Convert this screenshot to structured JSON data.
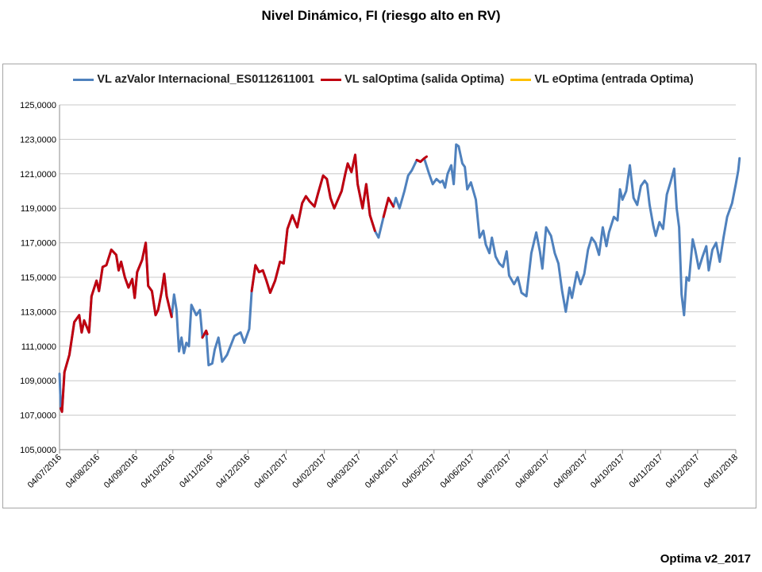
{
  "title": "Nivel Dinámico, FI (riesgo alto en RV)",
  "footer": "Optima v2_2017",
  "colors": {
    "series_blue": "#4f81bd",
    "series_red": "#c0000f",
    "series_yellow": "#ffc000",
    "grid": "#c8c8c8"
  },
  "chart_data": {
    "type": "line",
    "title": "Nivel Dinámico, FI (riesgo alto en RV)",
    "xlabel": "",
    "ylabel": "",
    "ylim": [
      105,
      125
    ],
    "y_ticks": [
      "105,0000",
      "107,0000",
      "109,0000",
      "111,0000",
      "113,0000",
      "115,0000",
      "117,0000",
      "119,0000",
      "121,0000",
      "123,0000",
      "125,0000"
    ],
    "x_ticks": [
      "04/07/2016",
      "04/08/2016",
      "04/09/2016",
      "04/10/2016",
      "04/11/2016",
      "04/12/2016",
      "04/01/2017",
      "04/02/2017",
      "04/03/2017",
      "04/04/2017",
      "04/05/2017",
      "04/06/2017",
      "04/07/2017",
      "04/08/2017",
      "04/09/2017",
      "04/10/2017",
      "04/11/2017",
      "04/12/2017",
      "04/01/2018"
    ],
    "grid": true,
    "legend_position": "top",
    "series": [
      {
        "name": "VL azValor Internacional_ES0112611001",
        "color": "#4f81bd",
        "points": [
          [
            "2016-07-04",
            109.4
          ],
          [
            "2016-07-05",
            107.4
          ],
          [
            "2016-07-06",
            107.2
          ],
          [
            "2016-07-08",
            109.5
          ],
          [
            "2016-07-12",
            110.5
          ],
          [
            "2016-07-16",
            112.4
          ],
          [
            "2016-07-20",
            112.8
          ],
          [
            "2016-07-22",
            111.8
          ],
          [
            "2016-07-24",
            112.5
          ],
          [
            "2016-07-28",
            111.8
          ],
          [
            "2016-07-30",
            113.9
          ],
          [
            "2016-08-03",
            114.8
          ],
          [
            "2016-08-05",
            114.2
          ],
          [
            "2016-08-08",
            115.6
          ],
          [
            "2016-08-11",
            115.7
          ],
          [
            "2016-08-15",
            116.6
          ],
          [
            "2016-08-19",
            116.3
          ],
          [
            "2016-08-21",
            115.4
          ],
          [
            "2016-08-23",
            115.9
          ],
          [
            "2016-08-26",
            115.0
          ],
          [
            "2016-08-29",
            114.4
          ],
          [
            "2016-09-01",
            114.9
          ],
          [
            "2016-09-03",
            113.8
          ],
          [
            "2016-09-05",
            115.3
          ],
          [
            "2016-09-09",
            116.0
          ],
          [
            "2016-09-12",
            117.0
          ],
          [
            "2016-09-14",
            114.5
          ],
          [
            "2016-09-17",
            114.2
          ],
          [
            "2016-09-20",
            112.8
          ],
          [
            "2016-09-22",
            113.1
          ],
          [
            "2016-09-25",
            114.2
          ],
          [
            "2016-09-27",
            115.2
          ],
          [
            "2016-09-29",
            113.9
          ],
          [
            "2016-10-03",
            112.7
          ],
          [
            "2016-10-05",
            114.0
          ],
          [
            "2016-10-07",
            113.1
          ],
          [
            "2016-10-09",
            110.7
          ],
          [
            "2016-10-11",
            111.5
          ],
          [
            "2016-10-13",
            110.6
          ],
          [
            "2016-10-15",
            111.2
          ],
          [
            "2016-10-17",
            111.0
          ],
          [
            "2016-10-19",
            113.4
          ],
          [
            "2016-10-23",
            112.8
          ],
          [
            "2016-10-26",
            113.1
          ],
          [
            "2016-10-28",
            111.5
          ],
          [
            "2016-10-31",
            111.9
          ],
          [
            "2016-11-02",
            109.9
          ],
          [
            "2016-11-05",
            110.0
          ],
          [
            "2016-11-07",
            110.8
          ],
          [
            "2016-11-10",
            111.5
          ],
          [
            "2016-11-13",
            110.1
          ],
          [
            "2016-11-17",
            110.5
          ],
          [
            "2016-11-23",
            111.6
          ],
          [
            "2016-11-28",
            111.8
          ],
          [
            "2016-12-01",
            111.2
          ],
          [
            "2016-12-05",
            112.0
          ],
          [
            "2016-12-07",
            114.2
          ],
          [
            "2016-12-10",
            115.7
          ],
          [
            "2016-12-13",
            115.3
          ],
          [
            "2016-12-16",
            115.4
          ],
          [
            "2016-12-19",
            114.8
          ],
          [
            "2016-12-22",
            114.1
          ],
          [
            "2016-12-26",
            114.8
          ],
          [
            "2016-12-30",
            115.9
          ],
          [
            "2017-01-02",
            115.8
          ],
          [
            "2017-01-05",
            117.8
          ],
          [
            "2017-01-09",
            118.6
          ],
          [
            "2017-01-13",
            117.9
          ],
          [
            "2017-01-17",
            119.3
          ],
          [
            "2017-01-20",
            119.7
          ],
          [
            "2017-01-23",
            119.4
          ],
          [
            "2017-01-27",
            119.1
          ],
          [
            "2017-01-30",
            119.9
          ],
          [
            "2017-02-03",
            120.9
          ],
          [
            "2017-02-06",
            120.7
          ],
          [
            "2017-02-09",
            119.6
          ],
          [
            "2017-02-12",
            119.0
          ],
          [
            "2017-02-15",
            119.5
          ],
          [
            "2017-02-18",
            120.0
          ],
          [
            "2017-02-21",
            121.0
          ],
          [
            "2017-02-23",
            121.6
          ],
          [
            "2017-02-26",
            121.1
          ],
          [
            "2017-03-01",
            122.1
          ],
          [
            "2017-03-03",
            120.4
          ],
          [
            "2017-03-07",
            119.0
          ],
          [
            "2017-03-10",
            120.4
          ],
          [
            "2017-03-13",
            118.6
          ],
          [
            "2017-03-17",
            117.7
          ],
          [
            "2017-03-20",
            117.3
          ],
          [
            "2017-03-24",
            118.5
          ],
          [
            "2017-03-28",
            119.6
          ],
          [
            "2017-04-01",
            119.1
          ],
          [
            "2017-04-03",
            119.6
          ],
          [
            "2017-04-06",
            119.0
          ],
          [
            "2017-04-10",
            120.0
          ],
          [
            "2017-04-13",
            120.9
          ],
          [
            "2017-04-16",
            121.2
          ],
          [
            "2017-04-20",
            121.8
          ],
          [
            "2017-04-23",
            121.7
          ],
          [
            "2017-04-26",
            121.9
          ],
          [
            "2017-04-30",
            121.0
          ],
          [
            "2017-05-03",
            120.4
          ],
          [
            "2017-05-06",
            120.7
          ],
          [
            "2017-05-09",
            120.5
          ],
          [
            "2017-05-11",
            120.6
          ],
          [
            "2017-05-13",
            120.2
          ],
          [
            "2017-05-15",
            121.0
          ],
          [
            "2017-05-18",
            121.5
          ],
          [
            "2017-05-20",
            120.4
          ],
          [
            "2017-05-22",
            122.7
          ],
          [
            "2017-05-24",
            122.6
          ],
          [
            "2017-05-27",
            121.6
          ],
          [
            "2017-05-29",
            121.4
          ],
          [
            "2017-05-31",
            120.1
          ],
          [
            "2017-06-03",
            120.5
          ],
          [
            "2017-06-07",
            119.5
          ],
          [
            "2017-06-10",
            117.3
          ],
          [
            "2017-06-13",
            117.7
          ],
          [
            "2017-06-15",
            116.9
          ],
          [
            "2017-06-18",
            116.4
          ],
          [
            "2017-06-20",
            117.3
          ],
          [
            "2017-06-23",
            116.2
          ],
          [
            "2017-06-26",
            115.8
          ],
          [
            "2017-06-29",
            115.6
          ],
          [
            "2017-07-02",
            116.5
          ],
          [
            "2017-07-04",
            115.1
          ],
          [
            "2017-07-08",
            114.6
          ],
          [
            "2017-07-11",
            115.0
          ],
          [
            "2017-07-14",
            114.1
          ],
          [
            "2017-07-18",
            113.9
          ],
          [
            "2017-07-22",
            116.4
          ],
          [
            "2017-07-26",
            117.6
          ],
          [
            "2017-07-29",
            116.5
          ],
          [
            "2017-07-31",
            115.5
          ],
          [
            "2017-08-03",
            117.9
          ],
          [
            "2017-08-07",
            117.4
          ],
          [
            "2017-08-10",
            116.4
          ],
          [
            "2017-08-13",
            115.8
          ],
          [
            "2017-08-16",
            114.2
          ],
          [
            "2017-08-19",
            113.0
          ],
          [
            "2017-08-22",
            114.4
          ],
          [
            "2017-08-24",
            113.8
          ],
          [
            "2017-08-28",
            115.3
          ],
          [
            "2017-08-31",
            114.6
          ],
          [
            "2017-09-03",
            115.2
          ],
          [
            "2017-09-06",
            116.6
          ],
          [
            "2017-09-09",
            117.3
          ],
          [
            "2017-09-12",
            117.0
          ],
          [
            "2017-09-15",
            116.3
          ],
          [
            "2017-09-18",
            117.9
          ],
          [
            "2017-09-21",
            116.8
          ],
          [
            "2017-09-23",
            117.6
          ],
          [
            "2017-09-27",
            118.5
          ],
          [
            "2017-09-30",
            118.3
          ],
          [
            "2017-10-02",
            120.1
          ],
          [
            "2017-10-04",
            119.5
          ],
          [
            "2017-10-07",
            120.0
          ],
          [
            "2017-10-10",
            121.5
          ],
          [
            "2017-10-13",
            119.6
          ],
          [
            "2017-10-16",
            119.2
          ],
          [
            "2017-10-19",
            120.3
          ],
          [
            "2017-10-22",
            120.6
          ],
          [
            "2017-10-24",
            120.4
          ],
          [
            "2017-10-26",
            119.2
          ],
          [
            "2017-10-29",
            118.0
          ],
          [
            "2017-10-31",
            117.4
          ],
          [
            "2017-11-03",
            118.2
          ],
          [
            "2017-11-06",
            117.8
          ],
          [
            "2017-11-09",
            119.8
          ],
          [
            "2017-11-12",
            120.5
          ],
          [
            "2017-11-15",
            121.3
          ],
          [
            "2017-11-17",
            119.0
          ],
          [
            "2017-11-19",
            117.9
          ],
          [
            "2017-11-21",
            114.0
          ],
          [
            "2017-11-23",
            112.8
          ],
          [
            "2017-11-25",
            115.0
          ],
          [
            "2017-11-27",
            114.8
          ],
          [
            "2017-11-30",
            117.2
          ],
          [
            "2017-12-02",
            116.6
          ],
          [
            "2017-12-05",
            115.5
          ],
          [
            "2017-12-08",
            116.2
          ],
          [
            "2017-12-11",
            116.8
          ],
          [
            "2017-12-13",
            115.4
          ],
          [
            "2017-12-16",
            116.6
          ],
          [
            "2017-12-19",
            117.0
          ],
          [
            "2017-12-22",
            115.9
          ],
          [
            "2017-12-25",
            117.3
          ],
          [
            "2017-12-28",
            118.5
          ],
          [
            "2018-01-01",
            119.3
          ],
          [
            "2018-01-04",
            120.4
          ],
          [
            "2018-01-06",
            121.2
          ],
          [
            "2018-01-07",
            121.9
          ]
        ]
      },
      {
        "name": "VL salOptima (salida Optima)",
        "color": "#c0000f",
        "points": [
          [
            "2016-07-05",
            107.4
          ],
          [
            "2016-07-06",
            107.2
          ],
          [
            "2016-07-08",
            109.5
          ],
          [
            "2016-07-12",
            110.5
          ],
          [
            "2016-07-16",
            112.4
          ],
          [
            "2016-07-20",
            112.8
          ],
          [
            "2016-07-22",
            111.8
          ],
          [
            "2016-07-24",
            112.5
          ],
          [
            "2016-07-28",
            111.8
          ],
          [
            "2016-07-30",
            113.9
          ],
          [
            "2016-08-03",
            114.8
          ],
          [
            "2016-08-05",
            114.2
          ],
          [
            "2016-08-08",
            115.6
          ],
          [
            "2016-08-11",
            115.7
          ],
          [
            "2016-08-15",
            116.6
          ],
          [
            "2016-08-19",
            116.3
          ],
          [
            "2016-08-21",
            115.4
          ],
          [
            "2016-08-23",
            115.9
          ],
          [
            "2016-08-26",
            115.0
          ],
          [
            "2016-08-29",
            114.4
          ],
          [
            "2016-09-01",
            114.9
          ],
          [
            "2016-09-03",
            113.8
          ],
          [
            "2016-09-05",
            115.3
          ],
          [
            "2016-09-09",
            116.0
          ],
          [
            "2016-09-12",
            117.0
          ],
          [
            "2016-09-14",
            114.5
          ],
          [
            "2016-09-17",
            114.2
          ],
          [
            "2016-09-20",
            112.8
          ],
          [
            "2016-09-22",
            113.1
          ],
          [
            "2016-09-25",
            114.2
          ],
          [
            "2016-09-27",
            115.2
          ],
          [
            "2016-09-29",
            113.9
          ],
          [
            "2016-10-03",
            112.7
          ],
          null,
          [
            "2016-10-28",
            111.5
          ],
          [
            "2016-10-31",
            111.9
          ],
          [
            "2016-11-01",
            111.7
          ],
          null,
          [
            "2016-12-07",
            114.2
          ],
          [
            "2016-12-10",
            115.7
          ],
          [
            "2016-12-13",
            115.3
          ],
          [
            "2016-12-16",
            115.4
          ],
          [
            "2016-12-19",
            114.8
          ],
          [
            "2016-12-22",
            114.1
          ],
          [
            "2016-12-26",
            114.8
          ],
          [
            "2016-12-30",
            115.9
          ],
          [
            "2017-01-02",
            115.8
          ],
          [
            "2017-01-05",
            117.8
          ],
          [
            "2017-01-09",
            118.6
          ],
          [
            "2017-01-13",
            117.9
          ],
          [
            "2017-01-17",
            119.3
          ],
          [
            "2017-01-20",
            119.7
          ],
          [
            "2017-01-23",
            119.4
          ],
          [
            "2017-01-27",
            119.1
          ],
          [
            "2017-01-30",
            119.9
          ],
          [
            "2017-02-03",
            120.9
          ],
          [
            "2017-02-06",
            120.7
          ],
          [
            "2017-02-09",
            119.6
          ],
          [
            "2017-02-12",
            119.0
          ],
          [
            "2017-02-15",
            119.5
          ],
          [
            "2017-02-18",
            120.0
          ],
          [
            "2017-02-21",
            121.0
          ],
          [
            "2017-02-23",
            121.6
          ],
          [
            "2017-02-26",
            121.1
          ],
          [
            "2017-03-01",
            122.1
          ],
          [
            "2017-03-03",
            120.4
          ],
          [
            "2017-03-07",
            119.0
          ],
          [
            "2017-03-10",
            120.4
          ],
          [
            "2017-03-13",
            118.6
          ],
          [
            "2017-03-17",
            117.7
          ],
          null,
          [
            "2017-03-24",
            118.5
          ],
          [
            "2017-03-28",
            119.6
          ],
          [
            "2017-04-01",
            119.1
          ],
          null,
          [
            "2017-04-20",
            121.8
          ],
          [
            "2017-04-23",
            121.7
          ],
          [
            "2017-04-26",
            121.9
          ],
          [
            "2017-04-28",
            122.0
          ]
        ]
      },
      {
        "name": "VL eOptima (entrada Optima)",
        "color": "#ffc000",
        "points": []
      }
    ]
  }
}
